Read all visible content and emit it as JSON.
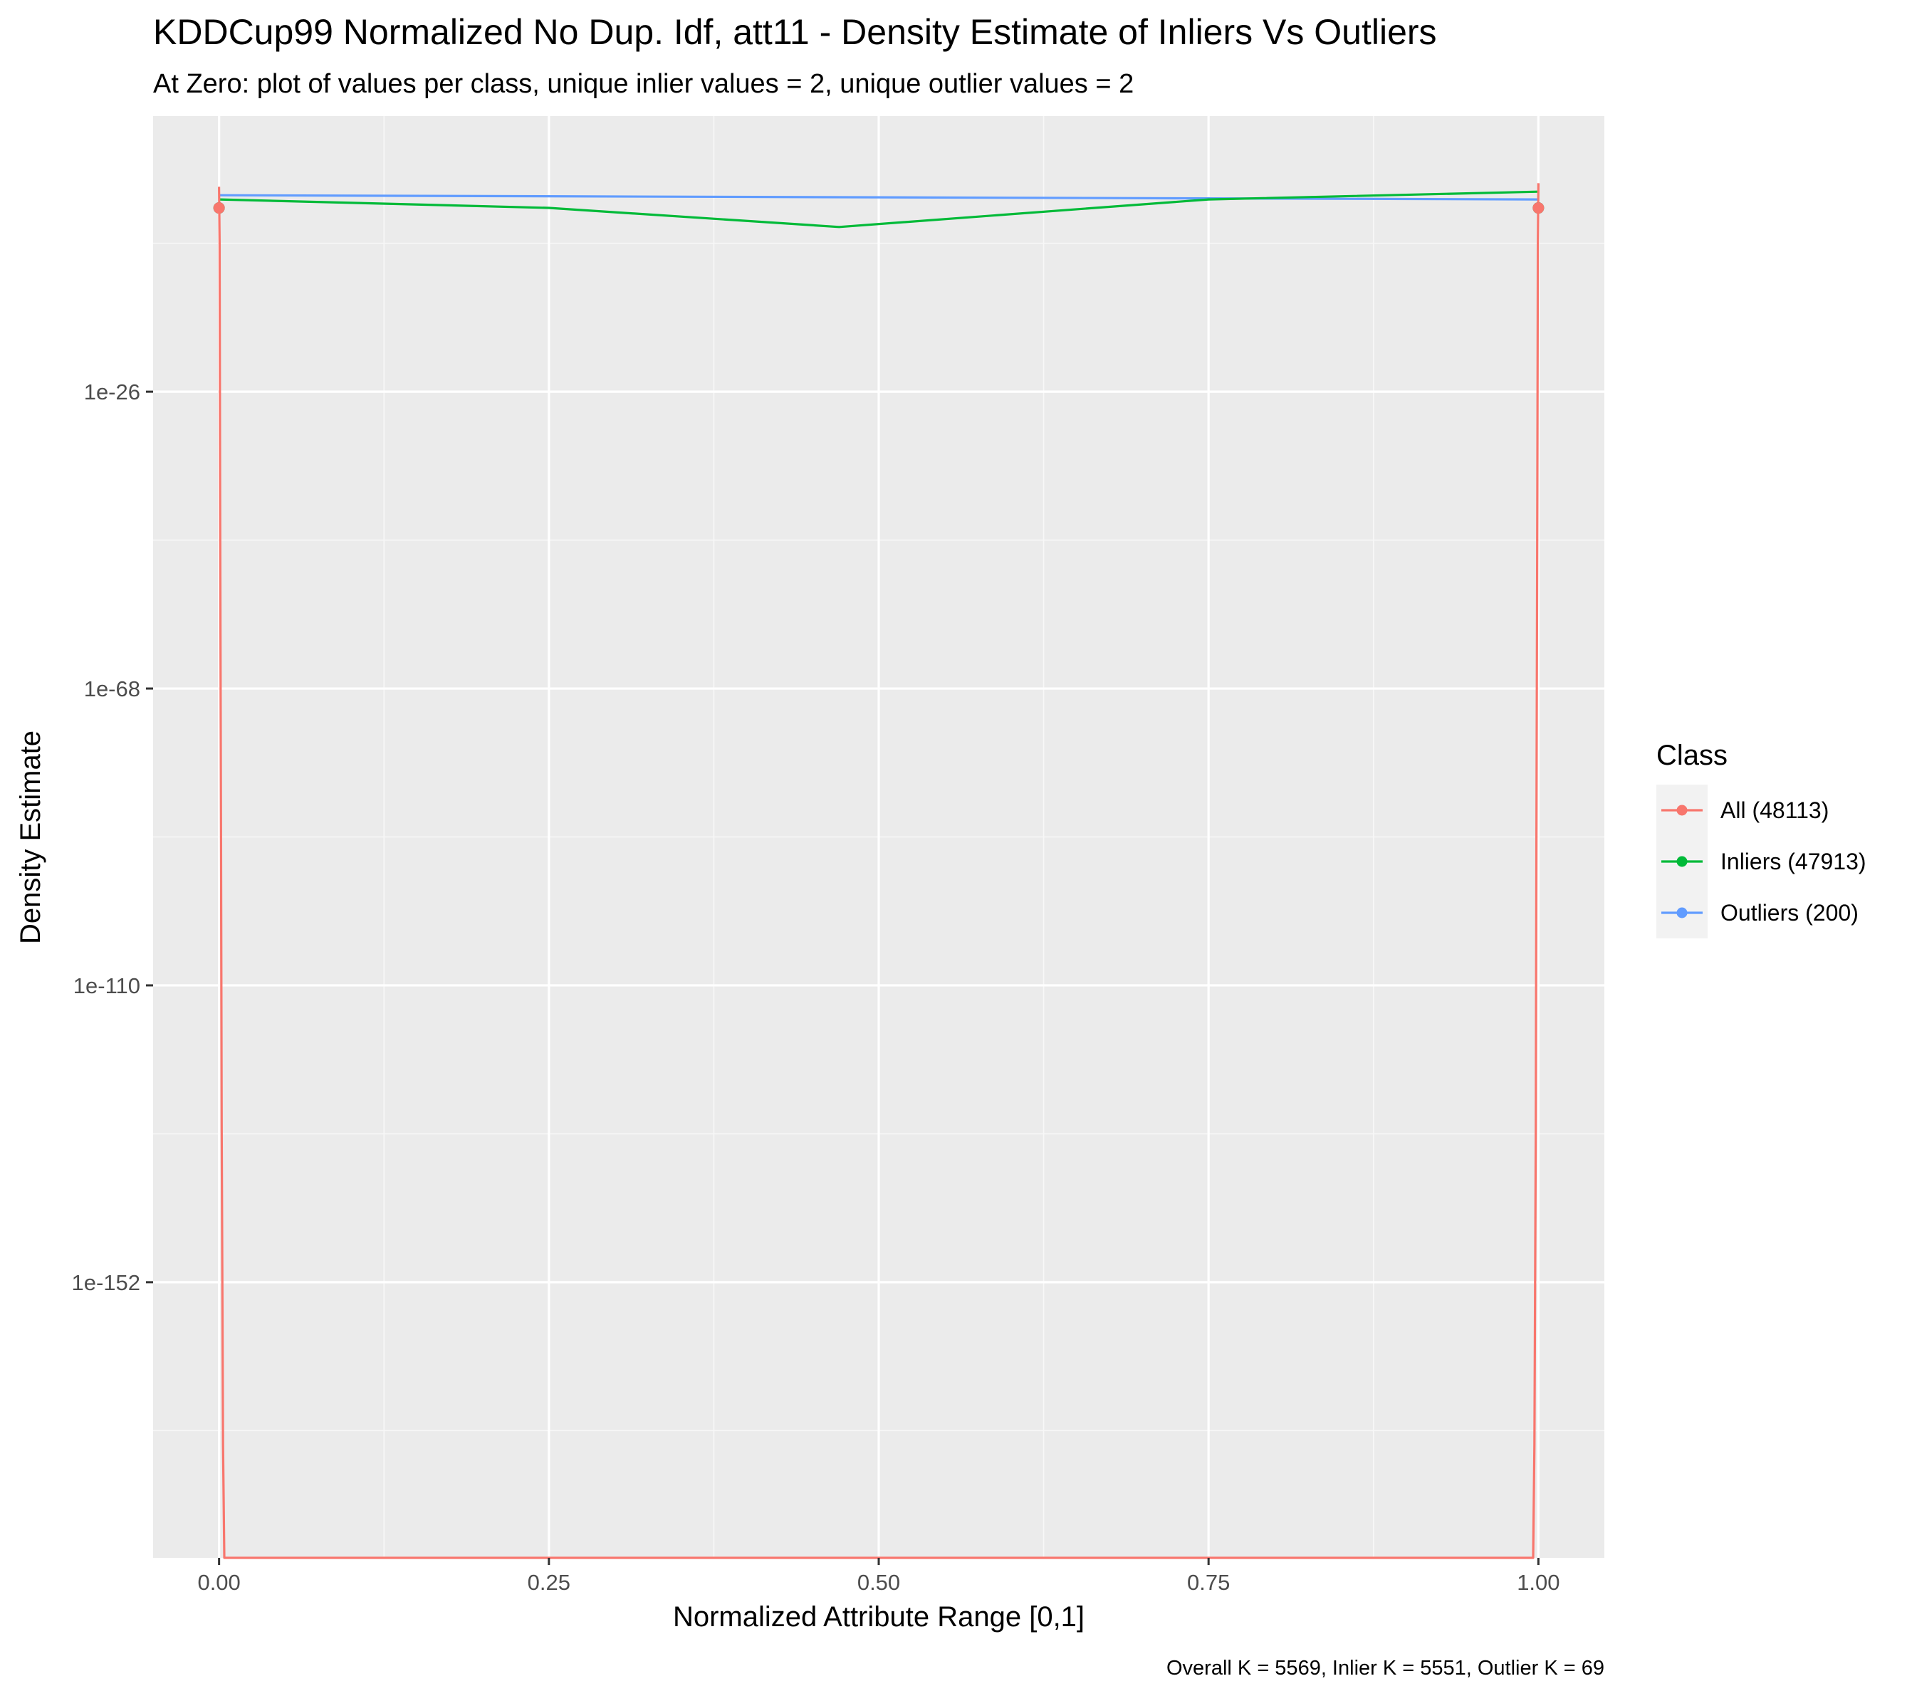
{
  "chart_data": {
    "type": "line",
    "title": "KDDCup99 Normalized No Dup. Idf, att11 - Density Estimate of Inliers Vs Outliers",
    "subtitle": "At Zero: plot of values per class, unique inlier values = 2, unique outlier values = 2",
    "xlabel": "Normalized Attribute Range [0,1]",
    "ylabel": "Density Estimate",
    "caption": "Overall K = 5569, Inlier K = 5551, Outlier K = 69",
    "x_ticks": [
      0,
      0.25,
      0.5,
      0.75,
      1
    ],
    "x_tick_labels": [
      "0.00",
      "0.25",
      "0.50",
      "0.75",
      "1.00"
    ],
    "y_scale": "log10",
    "y_ticks_log10": [
      -26,
      -68,
      -110,
      -152
    ],
    "y_tick_labels": [
      "1e-26",
      "1e-68",
      "1e-110",
      "1e-152"
    ],
    "xlim": [
      -0.05,
      1.05
    ],
    "ylim_log10": [
      -191,
      13
    ],
    "grid": true,
    "legend": {
      "title": "Class",
      "placement": "right",
      "entries": [
        "All (48113)",
        "Inliers (47913)",
        "Outliers (200)"
      ]
    },
    "series": [
      {
        "name": "All (48113)",
        "color": "#F8766D",
        "x": [
          0,
          0.0004,
          0.0008,
          0.0015,
          0.002,
          0.003,
          0.004,
          0.5,
          0.996,
          0.997,
          0.998,
          0.9985,
          0.9992,
          0.9996,
          1
        ],
        "y_log10": [
          3,
          -5,
          -40,
          -90,
          -130,
          -175,
          -191,
          -191,
          -191,
          -175,
          -130,
          -90,
          -40,
          -5,
          3.5
        ],
        "points_x": [
          0,
          1
        ],
        "points_y_log10": [
          0,
          0
        ]
      },
      {
        "name": "Inliers (47913)",
        "color": "#00BA38",
        "x": [
          0,
          0.25,
          0.47,
          0.75,
          1
        ],
        "y_log10": [
          1.2,
          0,
          -2.7,
          1.2,
          2.3
        ],
        "points_x": [
          0,
          1
        ],
        "points_y_log10": [
          0,
          0
        ]
      },
      {
        "name": "Outliers (200)",
        "color": "#619CFF",
        "x": [
          0,
          1
        ],
        "y_log10": [
          1.8,
          1.2
        ],
        "points_x": [
          0,
          1
        ],
        "points_y_log10": [
          0,
          0
        ]
      }
    ]
  }
}
